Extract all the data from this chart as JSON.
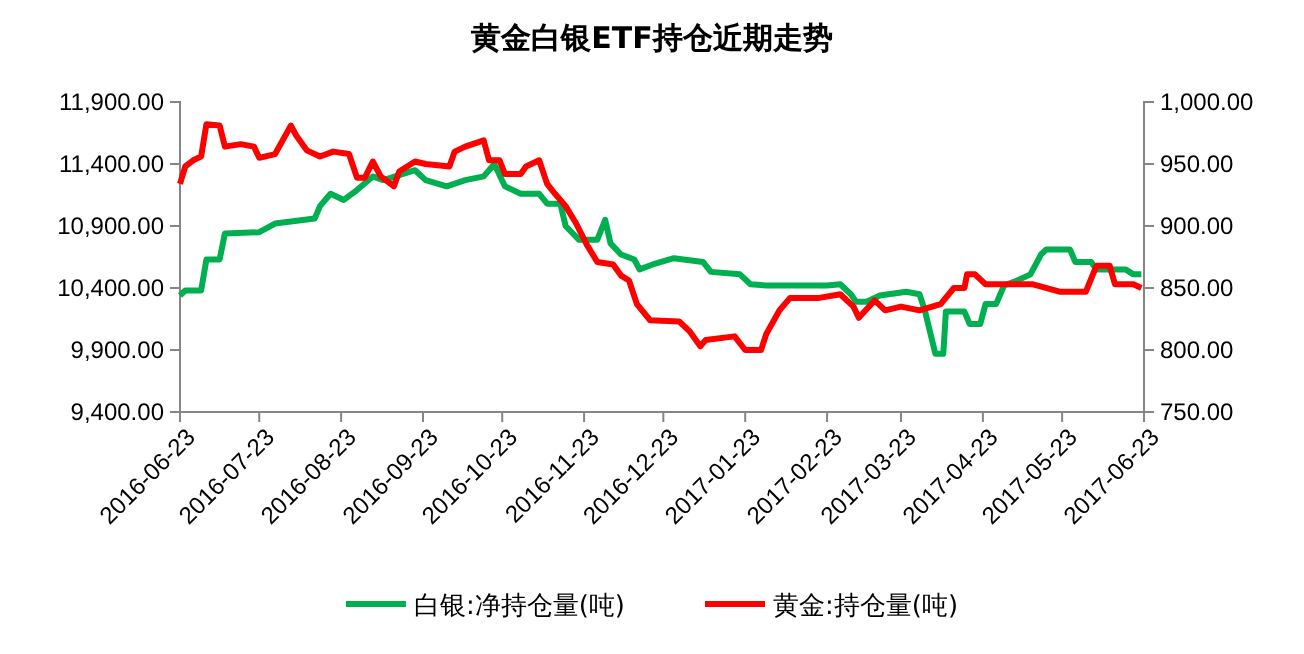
{
  "chart_data": {
    "type": "line",
    "title": "黄金白银ETF持仓近期走势",
    "legend": "bottom",
    "grid": false,
    "line_style": "solid",
    "marker": "none",
    "xlim": [
      "2016-06-23",
      "2017-06-23"
    ],
    "xticks": [
      "2016-06-23",
      "2016-07-23",
      "2016-08-23",
      "2016-09-23",
      "2016-10-23",
      "2016-11-23",
      "2016-12-23",
      "2017-01-23",
      "2017-02-23",
      "2017-03-23",
      "2017-04-23",
      "2017-05-23",
      "2017-06-23"
    ],
    "ylim": [
      9400,
      11900
    ],
    "yticks": [
      {
        "value": 9400,
        "label": "9,400.00"
      },
      {
        "value": 9900,
        "label": "9,900.00"
      },
      {
        "value": 10400,
        "label": "10,400.00"
      },
      {
        "value": 10900,
        "label": "10,900.00"
      },
      {
        "value": 11400,
        "label": "11,400.00"
      },
      {
        "value": 11900,
        "label": "11,900.00"
      }
    ],
    "y2lim": [
      750,
      1000
    ],
    "y2ticks": [
      {
        "value": 750,
        "label": "750.00"
      },
      {
        "value": 800,
        "label": "800.00"
      },
      {
        "value": 850,
        "label": "850.00"
      },
      {
        "value": 900,
        "label": "900.00"
      },
      {
        "value": 950,
        "label": "950.00"
      },
      {
        "value": 1000,
        "label": "1,000.00"
      }
    ],
    "series": [
      {
        "name": "白银:净持仓量(吨)",
        "color": "#00b050",
        "axis": "y",
        "x": [
          "2016-06-23",
          "2016-06-25",
          "2016-07-01",
          "2016-07-03",
          "2016-07-08",
          "2016-07-10",
          "2016-07-23",
          "2016-07-29",
          "2016-08-13",
          "2016-08-15",
          "2016-08-19",
          "2016-08-24",
          "2016-08-29",
          "2016-09-04",
          "2016-09-08",
          "2016-09-20",
          "2016-09-24",
          "2016-10-02",
          "2016-10-09",
          "2016-10-16",
          "2016-10-20",
          "2016-10-24",
          "2016-10-30",
          "2016-11-06",
          "2016-11-09",
          "2016-11-14",
          "2016-11-16",
          "2016-11-21",
          "2016-11-28",
          "2016-12-01",
          "2016-12-03",
          "2016-12-07",
          "2016-12-12",
          "2016-12-14",
          "2016-12-19",
          "2016-12-27",
          "2017-01-07",
          "2017-01-10",
          "2017-01-21",
          "2017-01-25",
          "2017-01-31",
          "2017-02-23",
          "2017-02-28",
          "2017-03-04",
          "2017-03-06",
          "2017-03-10",
          "2017-03-15",
          "2017-03-25",
          "2017-03-30",
          "2017-04-01",
          "2017-04-05",
          "2017-04-08",
          "2017-04-09",
          "2017-04-16",
          "2017-04-18",
          "2017-04-22",
          "2017-04-24",
          "2017-04-28",
          "2017-05-01",
          "2017-05-06",
          "2017-05-11",
          "2017-05-15",
          "2017-05-17",
          "2017-05-26",
          "2017-05-28",
          "2017-06-03",
          "2017-06-05",
          "2017-06-16",
          "2017-06-19",
          "2017-06-22"
        ],
        "values": [
          10340,
          10380,
          10380,
          10630,
          10630,
          10840,
          10850,
          10920,
          10960,
          11060,
          11160,
          11110,
          11190,
          11300,
          11270,
          11350,
          11270,
          11220,
          11270,
          11300,
          11400,
          11220,
          11160,
          11160,
          11080,
          11080,
          10900,
          10790,
          10790,
          10950,
          10760,
          10670,
          10630,
          10550,
          10590,
          10640,
          10610,
          10530,
          10510,
          10430,
          10420,
          10420,
          10430,
          10350,
          10290,
          10290,
          10340,
          10370,
          10350,
          10220,
          9870,
          9870,
          10210,
          10210,
          10110,
          10110,
          10270,
          10270,
          10420,
          10460,
          10510,
          10670,
          10710,
          10710,
          10610,
          10610,
          10550,
          10550,
          10510,
          10510
        ]
      },
      {
        "name": "黄金:持仓量(吨)",
        "color": "#ff0000",
        "axis": "y2",
        "x": [
          "2016-06-23",
          "2016-06-25",
          "2016-06-28",
          "2016-07-01",
          "2016-07-03",
          "2016-07-08",
          "2016-07-10",
          "2016-07-16",
          "2016-07-21",
          "2016-07-23",
          "2016-07-29",
          "2016-08-04",
          "2016-08-06",
          "2016-08-10",
          "2016-08-15",
          "2016-08-20",
          "2016-08-26",
          "2016-08-29",
          "2016-09-01",
          "2016-09-04",
          "2016-09-07",
          "2016-09-12",
          "2016-09-14",
          "2016-09-20",
          "2016-09-24",
          "2016-10-03",
          "2016-10-05",
          "2016-10-09",
          "2016-10-16",
          "2016-10-18",
          "2016-10-22",
          "2016-10-24",
          "2016-10-30",
          "2016-11-01",
          "2016-11-06",
          "2016-11-09",
          "2016-11-12",
          "2016-11-16",
          "2016-11-20",
          "2016-11-24",
          "2016-11-28",
          "2016-12-04",
          "2016-12-07",
          "2016-12-10",
          "2016-12-13",
          "2016-12-18",
          "2016-12-29",
          "2017-01-02",
          "2017-01-06",
          "2017-01-08",
          "2017-01-19",
          "2017-01-23",
          "2017-01-29",
          "2017-01-31",
          "2017-02-05",
          "2017-02-09",
          "2017-02-20",
          "2017-02-28",
          "2017-03-05",
          "2017-03-07",
          "2017-03-13",
          "2017-03-17",
          "2017-03-23",
          "2017-03-30",
          "2017-04-07",
          "2017-04-12",
          "2017-04-16",
          "2017-04-17",
          "2017-04-20",
          "2017-04-24",
          "2017-05-12",
          "2017-05-22",
          "2017-06-01",
          "2017-06-05",
          "2017-06-10",
          "2017-06-12",
          "2017-06-19",
          "2017-06-22"
        ],
        "values": [
          934,
          948,
          953,
          956,
          982,
          981,
          964,
          966,
          964,
          955,
          958,
          981,
          973,
          961,
          956,
          960,
          958,
          939,
          939,
          952,
          940,
          932,
          944,
          952,
          950,
          948,
          960,
          964,
          969,
          953,
          953,
          942,
          942,
          948,
          953,
          934,
          926,
          916,
          902,
          885,
          871,
          869,
          860,
          856,
          837,
          824,
          823,
          815,
          803,
          808,
          811,
          800,
          800,
          813,
          832,
          842,
          842,
          845,
          835,
          826,
          840,
          832,
          835,
          832,
          837,
          850,
          850,
          861,
          861,
          853,
          853,
          847,
          847,
          868,
          868,
          853,
          853,
          850
        ]
      }
    ]
  }
}
